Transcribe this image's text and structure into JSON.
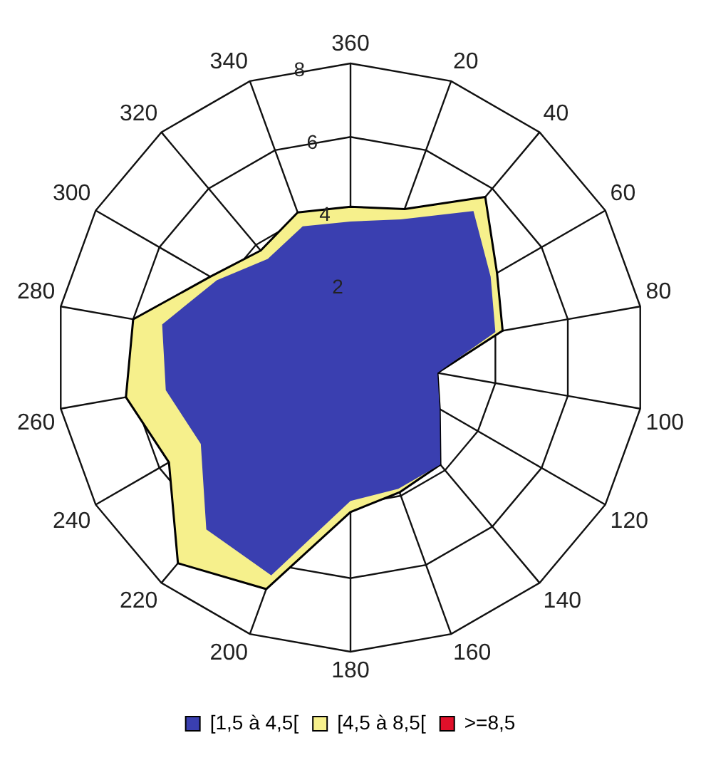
{
  "chart_data": {
    "type": "radar",
    "categories": [
      "360",
      "20",
      "40",
      "60",
      "80",
      "100",
      "120",
      "140",
      "160",
      "180",
      "200",
      "220",
      "240",
      "260",
      "280",
      "300",
      "320",
      "340"
    ],
    "ylim": [
      0,
      8
    ],
    "yticks": [
      2,
      4,
      6,
      8
    ],
    "legend": "bottom",
    "grid": true,
    "series": [
      {
        "name": "[1,5 à 4,5[",
        "color": "#3a3fb0",
        "values": [
          3.7,
          4.0,
          5.2,
          4.4,
          4.0,
          2.4,
          2.8,
          3.8,
          3.8,
          3.9,
          6.3,
          6.1,
          4.7,
          5.1,
          5.2,
          4.2,
          3.5,
          3.8
        ]
      },
      {
        "name": "[4,5 à 8,5[",
        "color": "#f6f08c",
        "values": [
          4.1,
          4.3,
          5.7,
          4.6,
          4.2,
          2.4,
          2.8,
          3.8,
          3.9,
          4.2,
          6.7,
          7.3,
          5.7,
          6.2,
          6.0,
          4.4,
          3.8,
          4.2
        ]
      },
      {
        "name": ">=8,5",
        "color": "#e0102a",
        "values": [
          null,
          null,
          null,
          null,
          null,
          null,
          null,
          null,
          null,
          null,
          null,
          null,
          null,
          null,
          null,
          null,
          null,
          null
        ]
      }
    ]
  }
}
